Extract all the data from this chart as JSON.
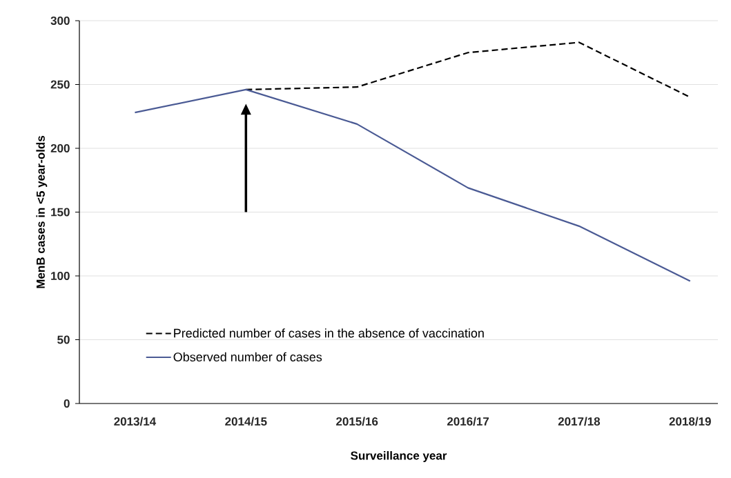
{
  "chart_data": {
    "type": "line",
    "xlabel": "Surveillance year",
    "ylabel": "MenB cases in <5 year-olds",
    "categories": [
      "2013/14",
      "2014/15",
      "2015/16",
      "2016/17",
      "2017/18",
      "2018/19"
    ],
    "series": [
      {
        "name": "Predicted number of cases in the absence of vaccination",
        "color": "#000000",
        "line_style": "dashed",
        "values": [
          null,
          246,
          248,
          275,
          283,
          240
        ]
      },
      {
        "name": "Observed number of cases",
        "color": "#4a5a94",
        "line_style": "solid",
        "values": [
          228,
          246,
          219,
          169,
          139,
          96
        ]
      }
    ],
    "ylim": [
      0,
      300
    ],
    "yticks": [
      0,
      50,
      100,
      150,
      200,
      250,
      300
    ],
    "grid": "y",
    "legend": "bottom left",
    "marker": "none"
  }
}
